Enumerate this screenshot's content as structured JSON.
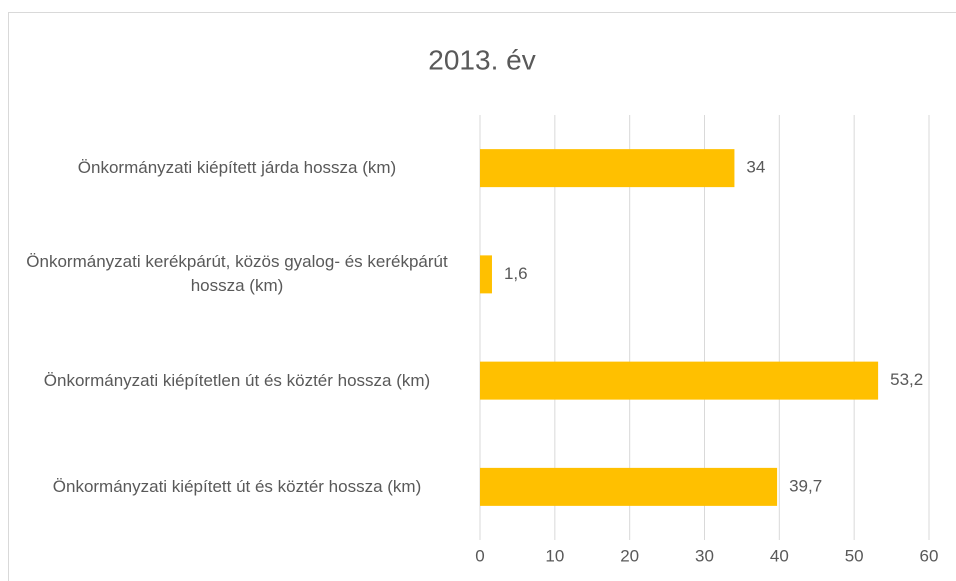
{
  "chart_data": {
    "type": "bar",
    "orientation": "horizontal",
    "title": "2013. év",
    "categories": [
      "Önkormányzati kiépített járda hossza (km)",
      "Önkormányzati kerékpárút, közös gyalog- és kerékpárút hossza (km)",
      "Önkormányzati kiépítetlen út és köztér hossza (km)",
      "Önkormányzati kiépített út és köztér hossza (km)"
    ],
    "values": [
      34,
      1.6,
      53.2,
      39.7
    ],
    "value_labels": [
      "34",
      "1,6",
      "53,2",
      "39,7"
    ],
    "color": "#ffc000",
    "xlim": [
      0,
      60
    ],
    "xticks": [
      0,
      10,
      20,
      30,
      40,
      50,
      60
    ],
    "grid": true
  }
}
